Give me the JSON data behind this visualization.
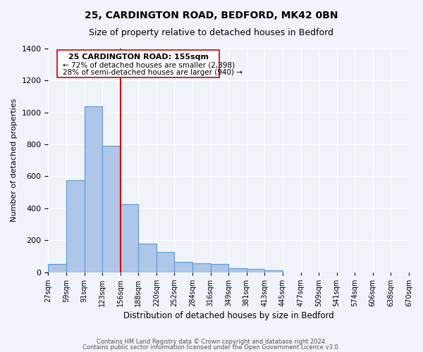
{
  "title1": "25, CARDINGTON ROAD, BEDFORD, MK42 0BN",
  "title2": "Size of property relative to detached houses in Bedford",
  "xlabel": "Distribution of detached houses by size in Bedford",
  "ylabel": "Number of detached properties",
  "bin_labels": [
    "27sqm",
    "59sqm",
    "91sqm",
    "123sqm",
    "156sqm",
    "188sqm",
    "220sqm",
    "252sqm",
    "284sqm",
    "316sqm",
    "349sqm",
    "381sqm",
    "413sqm",
    "445sqm",
    "477sqm",
    "509sqm",
    "541sqm",
    "574sqm",
    "606sqm",
    "638sqm",
    "670sqm"
  ],
  "bar_values": [
    50,
    575,
    1040,
    790,
    425,
    178,
    125,
    65,
    55,
    50,
    25,
    18,
    10,
    0,
    0,
    0,
    0,
    0,
    0,
    0
  ],
  "bar_color": "#aec6e8",
  "bar_edge_color": "#5b9bd5",
  "vline_x": 4,
  "vline_color": "#cc0000",
  "ylim": [
    0,
    1400
  ],
  "yticks": [
    0,
    200,
    400,
    600,
    800,
    1000,
    1200,
    1400
  ],
  "annotation_title": "25 CARDINGTON ROAD: 155sqm",
  "annotation_line1": "← 72% of detached houses are smaller (2,398)",
  "annotation_line2": "28% of semi-detached houses are larger (940) →",
  "footer1": "Contains HM Land Registry data © Crown copyright and database right 2024.",
  "footer2": "Contains public sector information licensed under the Open Government Licence v3.0.",
  "background_color": "#f0f4fa",
  "plot_bg_color": "#f0f4fa"
}
